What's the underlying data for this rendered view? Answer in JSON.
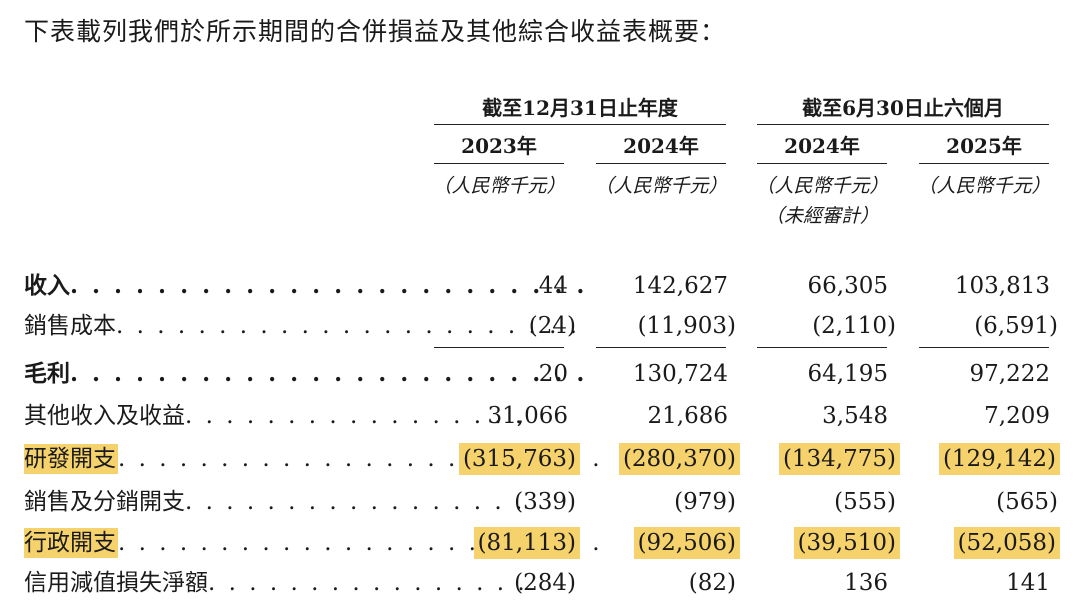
{
  "intro": "下表載列我們於所示期間的合併損益及其他綜合收益表概要：",
  "header": {
    "groups": [
      "截至12月31日止年度",
      "截至6月30日止六個月"
    ],
    "years": [
      "2023年",
      "2024年",
      "2024年",
      "2025年"
    ],
    "units": [
      "（人民幣千元）",
      "（人民幣千元）",
      "（人民幣千元）",
      "（人民幣千元）"
    ],
    "unaudited_note": "（未經審計）"
  },
  "rows": [
    {
      "label": "收入",
      "dots": ". . . . . . . . . . . . . . . . . . . . . . . .",
      "values": [
        "44",
        "142,627",
        "66,305",
        "103,813"
      ],
      "bold": true,
      "highlight": false
    },
    {
      "label": "銷售成本",
      "dots": ". . . . . . . . . . . . . . . . . . . . . . .",
      "values": [
        "(24)",
        "(11,903)",
        "(2,110)",
        "(6,591)"
      ],
      "bold": false,
      "highlight": false
    },
    {
      "label": "毛利",
      "dots": ". . . . . . . . . . . . . . . . . . . . . . . .",
      "values": [
        "20",
        "130,724",
        "64,195",
        "97,222"
      ],
      "bold": true,
      "highlight": false
    },
    {
      "label": "其他收入及收益",
      "dots": ". . . . . . . . . . . . . . . . .",
      "values": [
        "31,066",
        "21,686",
        "3,548",
        "7,209"
      ],
      "bold": false,
      "highlight": false
    },
    {
      "label": "研發開支",
      "dots": ". . . . . . . . . . . . . . . . . . . . . . . .",
      "values": [
        "(315,763)",
        "(280,370)",
        "(134,775)",
        "(129,142)"
      ],
      "bold": false,
      "highlight": true
    },
    {
      "label": "銷售及分銷開支",
      "dots": ". . . . . . . . . . . . . . . . .",
      "values": [
        "(339)",
        "(979)",
        "(555)",
        "(565)"
      ],
      "bold": false,
      "highlight": false
    },
    {
      "label": "行政開支",
      "dots": ". . . . . . . . . . . . . . . . . . . . . . . .",
      "values": [
        "(81,113)",
        "(92,506)",
        "(39,510)",
        "(52,058)"
      ],
      "bold": false,
      "highlight": true
    },
    {
      "label": "信用減值損失淨額",
      "dots": ". . . . . . . . . . . . . . . .",
      "values": [
        "(284)",
        "(82)",
        "136",
        "141"
      ],
      "bold": false,
      "highlight": false
    }
  ],
  "colors": {
    "highlight": "#f5d26b",
    "text": "#1a1a1a"
  }
}
